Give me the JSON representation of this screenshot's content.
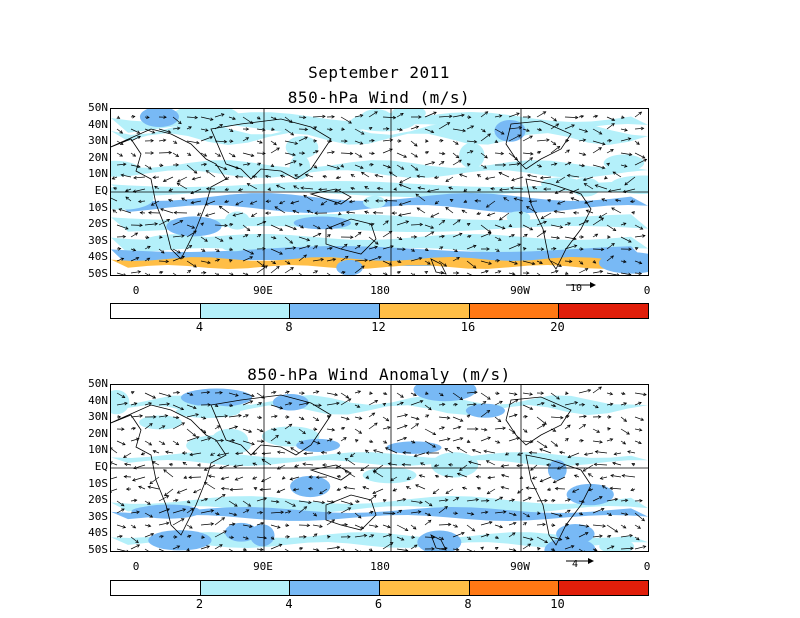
{
  "title": "September 2011",
  "panel1": {
    "title": "850-hPa Wind (m/s)",
    "ref_vector_label": "10",
    "colorbar_colors": [
      "#ffffff",
      "#b4f0fa",
      "#78b9f5",
      "#ffbe46",
      "#ff7814",
      "#e11e0a"
    ],
    "colorbar_labels": [
      "4",
      "8",
      "12",
      "16",
      "20"
    ]
  },
  "panel2": {
    "title": "850-hPa Wind Anomaly (m/s)",
    "ref_vector_label": "4",
    "colorbar_colors": [
      "#ffffff",
      "#b4f0fa",
      "#78b9f5",
      "#ffbe46",
      "#ff7814",
      "#e11e0a"
    ],
    "colorbar_labels": [
      "2",
      "4",
      "6",
      "8",
      "10"
    ]
  },
  "lat_labels": [
    "50N",
    "40N",
    "30N",
    "20N",
    "10N",
    "EQ",
    "10S",
    "20S",
    "30S",
    "40S",
    "50S"
  ],
  "lon_labels": [
    "0",
    "90E",
    "180",
    "90W",
    "0"
  ]
}
